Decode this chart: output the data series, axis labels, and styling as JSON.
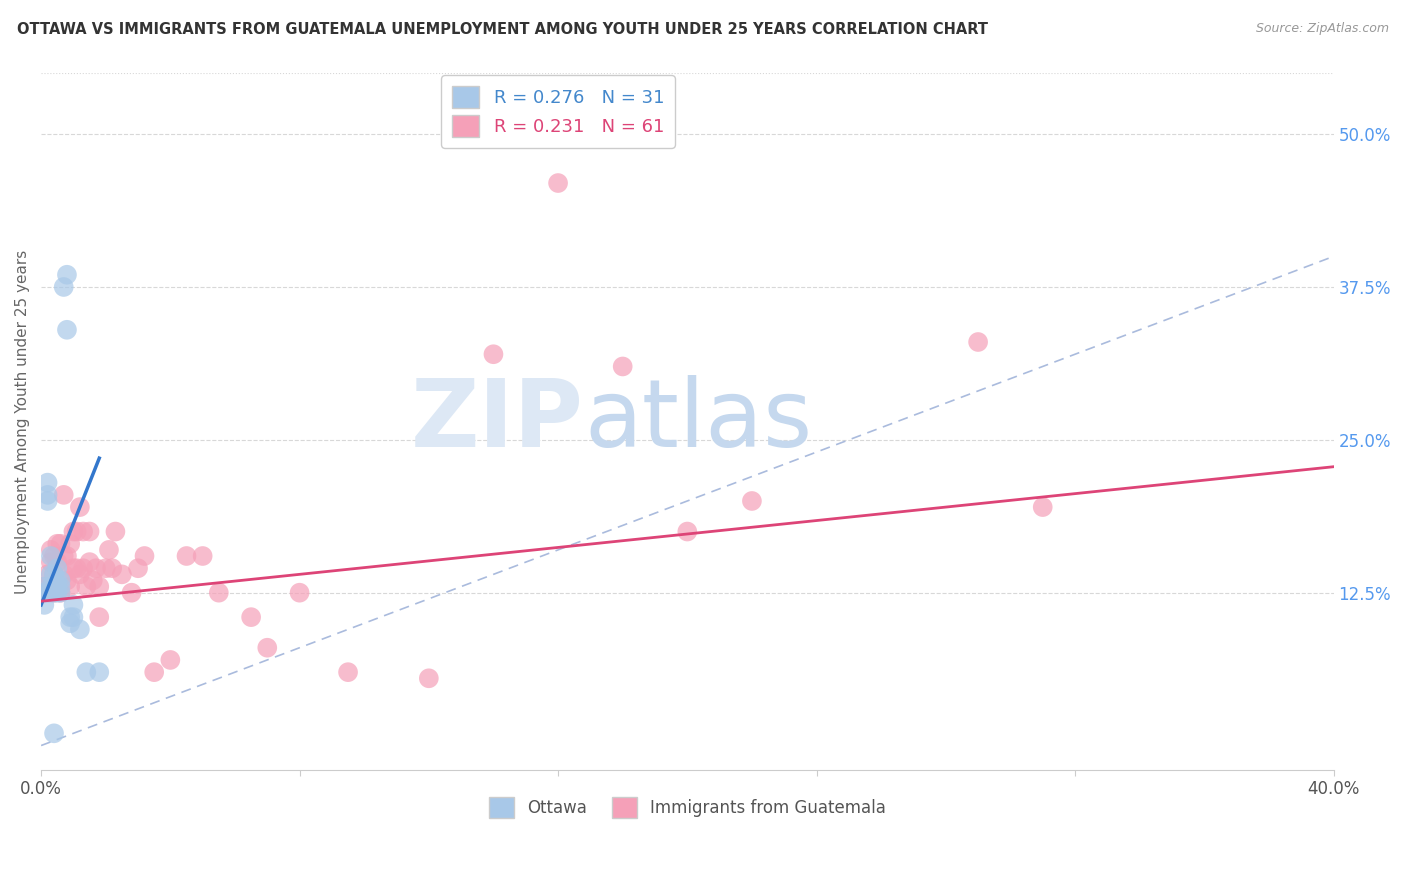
{
  "title": "OTTAWA VS IMMIGRANTS FROM GUATEMALA UNEMPLOYMENT AMONG YOUTH UNDER 25 YEARS CORRELATION CHART",
  "source": "Source: ZipAtlas.com",
  "ylabel": "Unemployment Among Youth under 25 years",
  "xlim": [
    0.0,
    0.4
  ],
  "ylim": [
    -0.02,
    0.55
  ],
  "yticks_right": [
    0.125,
    0.25,
    0.375,
    0.5
  ],
  "yticks_right_labels": [
    "12.5%",
    "25.0%",
    "37.5%",
    "50.0%"
  ],
  "background_color": "#ffffff",
  "grid_color": "#d8d8d8",
  "watermark_zip": "ZIP",
  "watermark_atlas": "atlas",
  "ottawa_color": "#a8c8e8",
  "guatemala_color": "#f5a0b8",
  "ottawa_line_color": "#3377cc",
  "guatemala_line_color": "#dd4477",
  "diag_line_color": "#aabbdd",
  "legend_R_ottawa": "R = 0.276",
  "legend_N_ottawa": "N = 31",
  "legend_R_guatemala": "R = 0.231",
  "legend_N_guatemala": "N = 61",
  "ottawa_x": [
    0.001,
    0.001,
    0.001,
    0.002,
    0.002,
    0.002,
    0.003,
    0.003,
    0.003,
    0.003,
    0.004,
    0.004,
    0.004,
    0.005,
    0.005,
    0.005,
    0.005,
    0.006,
    0.006,
    0.006,
    0.007,
    0.008,
    0.008,
    0.009,
    0.009,
    0.01,
    0.01,
    0.012,
    0.014,
    0.018,
    0.004
  ],
  "ottawa_y": [
    0.125,
    0.13,
    0.115,
    0.2,
    0.205,
    0.215,
    0.125,
    0.13,
    0.14,
    0.155,
    0.125,
    0.13,
    0.14,
    0.125,
    0.13,
    0.135,
    0.145,
    0.125,
    0.13,
    0.135,
    0.375,
    0.385,
    0.34,
    0.1,
    0.105,
    0.115,
    0.105,
    0.095,
    0.06,
    0.06,
    0.01
  ],
  "guatemala_x": [
    0.001,
    0.002,
    0.002,
    0.003,
    0.003,
    0.003,
    0.004,
    0.004,
    0.004,
    0.005,
    0.005,
    0.005,
    0.006,
    0.006,
    0.007,
    0.007,
    0.007,
    0.008,
    0.008,
    0.009,
    0.009,
    0.01,
    0.01,
    0.011,
    0.011,
    0.012,
    0.012,
    0.013,
    0.013,
    0.014,
    0.015,
    0.015,
    0.016,
    0.017,
    0.018,
    0.018,
    0.02,
    0.021,
    0.022,
    0.023,
    0.025,
    0.028,
    0.03,
    0.032,
    0.035,
    0.04,
    0.045,
    0.05,
    0.055,
    0.065,
    0.07,
    0.08,
    0.095,
    0.12,
    0.14,
    0.16,
    0.18,
    0.2,
    0.22,
    0.31,
    0.29
  ],
  "guatemala_y": [
    0.13,
    0.125,
    0.14,
    0.13,
    0.15,
    0.16,
    0.125,
    0.14,
    0.155,
    0.13,
    0.15,
    0.165,
    0.125,
    0.165,
    0.14,
    0.155,
    0.205,
    0.135,
    0.155,
    0.13,
    0.165,
    0.145,
    0.175,
    0.145,
    0.175,
    0.14,
    0.195,
    0.145,
    0.175,
    0.13,
    0.15,
    0.175,
    0.135,
    0.145,
    0.105,
    0.13,
    0.145,
    0.16,
    0.145,
    0.175,
    0.14,
    0.125,
    0.145,
    0.155,
    0.06,
    0.07,
    0.155,
    0.155,
    0.125,
    0.105,
    0.08,
    0.125,
    0.06,
    0.055,
    0.32,
    0.46,
    0.31,
    0.175,
    0.2,
    0.195,
    0.33
  ],
  "ottawa_line_x": [
    0.0,
    0.018
  ],
  "ottawa_line_y": [
    0.115,
    0.235
  ],
  "guatemala_line_x": [
    0.0,
    0.4
  ],
  "guatemala_line_y": [
    0.118,
    0.228
  ]
}
